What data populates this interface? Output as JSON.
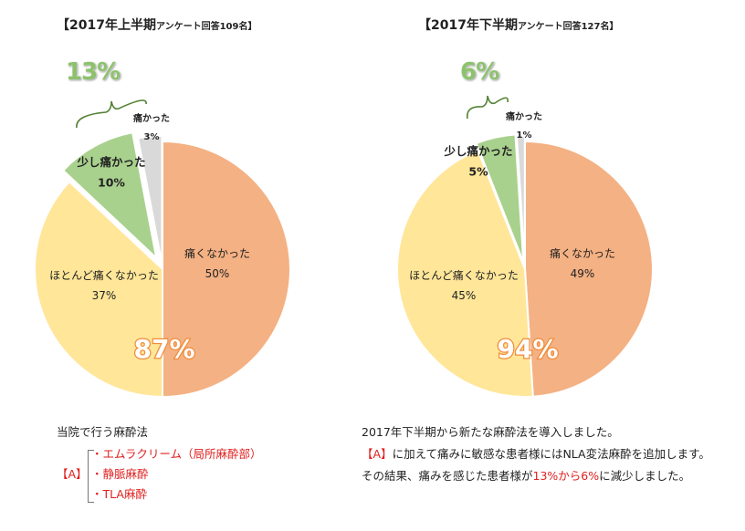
{
  "chart_data": [
    {
      "type": "pie",
      "title": "【2017年上半期",
      "subtitle": "アンケート回答109名】",
      "slices": [
        {
          "label": "痛くなかった",
          "value": 50,
          "display": "50%",
          "color": "#f4b183"
        },
        {
          "label": "ほとんど痛くなかった",
          "value": 37,
          "display": "37%",
          "color": "#ffe699"
        },
        {
          "label": "少し痛かった",
          "value": 10,
          "display": "10%",
          "color": "#a9d18e"
        },
        {
          "label": "痛かった",
          "value": 3,
          "display": "3%",
          "color": "#d9d9d9"
        }
      ],
      "combined_callout": "87%",
      "brace_callout": "13%"
    },
    {
      "type": "pie",
      "title": "【2017年下半期",
      "subtitle": "アンケート回答127名】",
      "slices": [
        {
          "label": "痛くなかった",
          "value": 49,
          "display": "49%",
          "color": "#f4b183"
        },
        {
          "label": "ほとんど痛くなかった",
          "value": 45,
          "display": "45%",
          "color": "#ffe699"
        },
        {
          "label": "少し痛かった",
          "value": 5,
          "display": "5%",
          "color": "#a9d18e"
        },
        {
          "label": "痛かった",
          "value": 1,
          "display": "1%",
          "color": "#d9d9d9"
        }
      ],
      "combined_callout": "94%",
      "brace_callout": "6%"
    }
  ],
  "left_note": {
    "heading": "当院で行う麻酔法",
    "bracket_label": "【A】",
    "items": [
      "・エムラクリーム（局所麻酔部）",
      "・静脈麻酔",
      "・TLA麻酔"
    ]
  },
  "right_note": {
    "line1": "2017年下半期から新たな麻酔法を導入しました。",
    "line2_red": "【A】",
    "line2_rest": "に加えて痛みに敏感な患者様にはNLA変法麻酔を追加します。",
    "line3_a": "その結果、痛みを感じた患者様が",
    "line3_red": "13%から6%",
    "line3_b": "に減少しました。"
  },
  "colors": {
    "accent_green": "#8dc26d",
    "red_text": "#e02020"
  }
}
